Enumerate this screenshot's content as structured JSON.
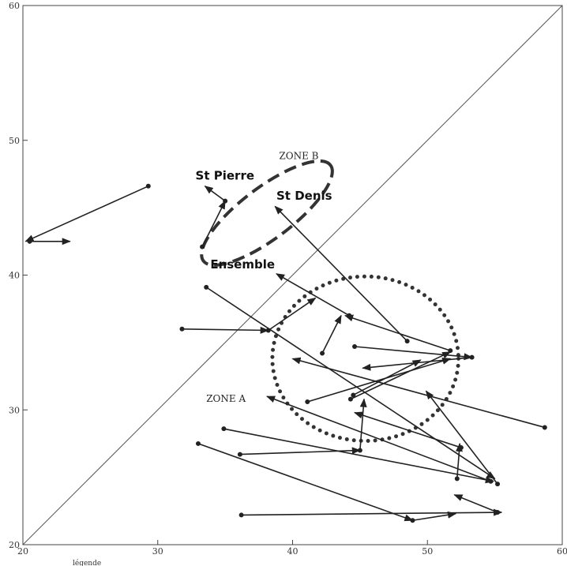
{
  "chart_data": {
    "type": "scatter",
    "title": "",
    "xlabel": "",
    "ylabel": "",
    "xlim": [
      20,
      60
    ],
    "ylim": [
      20,
      60
    ],
    "xticks": [
      "20",
      "30",
      "40",
      "50",
      "60"
    ],
    "yticks": [
      "20",
      "30",
      "40",
      "50",
      "60"
    ],
    "diagonal": {
      "from": [
        20,
        20
      ],
      "to": [
        60,
        60
      ]
    },
    "arrows": [
      {
        "from": [
          29.3,
          46.6
        ],
        "to": [
          20.2,
          42.5
        ]
      },
      {
        "from": [
          20.5,
          42.5
        ],
        "to": [
          23.5,
          42.5
        ]
      },
      {
        "from": [
          33.3,
          42.1
        ],
        "to": [
          35.0,
          45.5
        ]
      },
      {
        "from": [
          35.0,
          45.5
        ],
        "to": [
          33.5,
          46.6
        ]
      },
      {
        "from": [
          48.5,
          35.1
        ],
        "to": [
          38.7,
          45.1
        ]
      },
      {
        "from": [
          44.2,
          37.0
        ],
        "to": [
          38.8,
          40.1
        ]
      },
      {
        "from": [
          38.2,
          35.9
        ],
        "to": [
          41.7,
          38.3
        ]
      },
      {
        "from": [
          42.2,
          34.2
        ],
        "to": [
          43.6,
          37.0
        ]
      },
      {
        "from": [
          31.8,
          36.0
        ],
        "to": [
          38.2,
          35.9
        ]
      },
      {
        "from": [
          33.6,
          39.1
        ],
        "to": [
          55.0,
          24.9
        ]
      },
      {
        "from": [
          51.7,
          34.4
        ],
        "to": [
          43.9,
          37.0
        ]
      },
      {
        "from": [
          44.6,
          34.7
        ],
        "to": [
          53.3,
          33.9
        ]
      },
      {
        "from": [
          53.3,
          33.9
        ],
        "to": [
          45.2,
          33.1
        ]
      },
      {
        "from": [
          58.7,
          28.7
        ],
        "to": [
          40.0,
          33.8
        ]
      },
      {
        "from": [
          41.1,
          30.6
        ],
        "to": [
          51.7,
          33.8
        ]
      },
      {
        "from": [
          44.3,
          30.8
        ],
        "to": [
          51.7,
          34.3
        ]
      },
      {
        "from": [
          44.5,
          31.1
        ],
        "to": [
          49.5,
          33.7
        ]
      },
      {
        "from": [
          52.2,
          24.9
        ],
        "to": [
          52.4,
          27.5
        ]
      },
      {
        "from": [
          55.2,
          24.5
        ],
        "to": [
          49.9,
          31.4
        ]
      },
      {
        "from": [
          54.7,
          24.7
        ],
        "to": [
          38.1,
          31.0
        ]
      },
      {
        "from": [
          45.0,
          27.0
        ],
        "to": [
          45.3,
          30.8
        ]
      },
      {
        "from": [
          52.5,
          27.2
        ],
        "to": [
          44.6,
          29.8
        ]
      },
      {
        "from": [
          34.9,
          28.6
        ],
        "to": [
          54.9,
          24.7
        ]
      },
      {
        "from": [
          36.1,
          26.7
        ],
        "to": [
          45.0,
          27.0
        ]
      },
      {
        "from": [
          33.0,
          27.5
        ],
        "to": [
          48.9,
          21.8
        ]
      },
      {
        "from": [
          48.9,
          21.8
        ],
        "to": [
          52.1,
          22.3
        ]
      },
      {
        "from": [
          36.2,
          22.2
        ],
        "to": [
          55.5,
          22.4
        ]
      },
      {
        "from": [
          55.2,
          22.4
        ],
        "to": [
          52.0,
          23.7
        ]
      }
    ],
    "annotations": [
      {
        "text": "ZONE B",
        "x": 39.0,
        "y": 48.6
      },
      {
        "text": "St Pierre",
        "x": 32.8,
        "y": 47.1
      },
      {
        "text": "St Denis",
        "x": 38.8,
        "y": 45.6
      },
      {
        "text": "Ensemble",
        "x": 33.9,
        "y": 40.5
      },
      {
        "text": "ZONE A",
        "x": 33.6,
        "y": 30.6
      }
    ],
    "zones": [
      {
        "name": "ZONE B",
        "style": "dashed",
        "center": [
          38.1,
          44.6
        ],
        "rx": 5.9,
        "ry": 1.9,
        "rotation_deg": -37
      },
      {
        "name": "ZONE A",
        "style": "dotted",
        "center": [
          45.4,
          33.8
        ],
        "rx": 6.9,
        "ry": 6.1,
        "rotation_deg": 0
      }
    ],
    "legend": {
      "text": "légende",
      "placement": "bottom-left"
    }
  }
}
